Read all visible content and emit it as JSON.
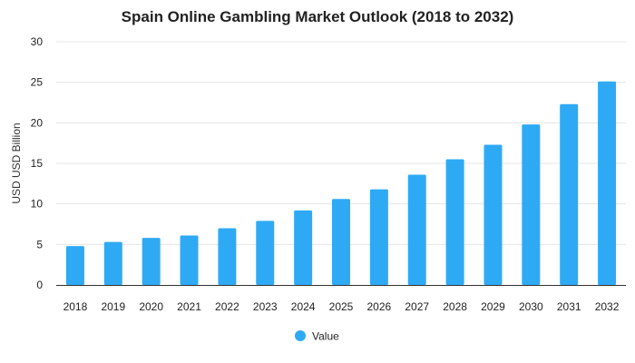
{
  "chart_data": {
    "type": "bar",
    "title": "Spain Online Gambling Market Outlook (2018 to 2032)",
    "xlabel": "",
    "ylabel": "USD USD Billion",
    "categories": [
      "2018",
      "2019",
      "2020",
      "2021",
      "2022",
      "2023",
      "2024",
      "2025",
      "2026",
      "2027",
      "2028",
      "2029",
      "2030",
      "2031",
      "2032"
    ],
    "series": [
      {
        "name": "Value",
        "values": [
          4.8,
          5.3,
          5.8,
          6.1,
          7.0,
          7.9,
          9.2,
          10.6,
          11.8,
          13.6,
          15.5,
          17.3,
          19.8,
          22.3,
          25.1
        ]
      }
    ],
    "ylim": [
      0,
      30
    ],
    "yticks": [
      0,
      5,
      10,
      15,
      20,
      25,
      30
    ],
    "grid": true,
    "legend": "bottom-center",
    "colors": {
      "bar": "#2eaaf5",
      "grid": "#e5e5e5",
      "axis": "#333333"
    }
  }
}
